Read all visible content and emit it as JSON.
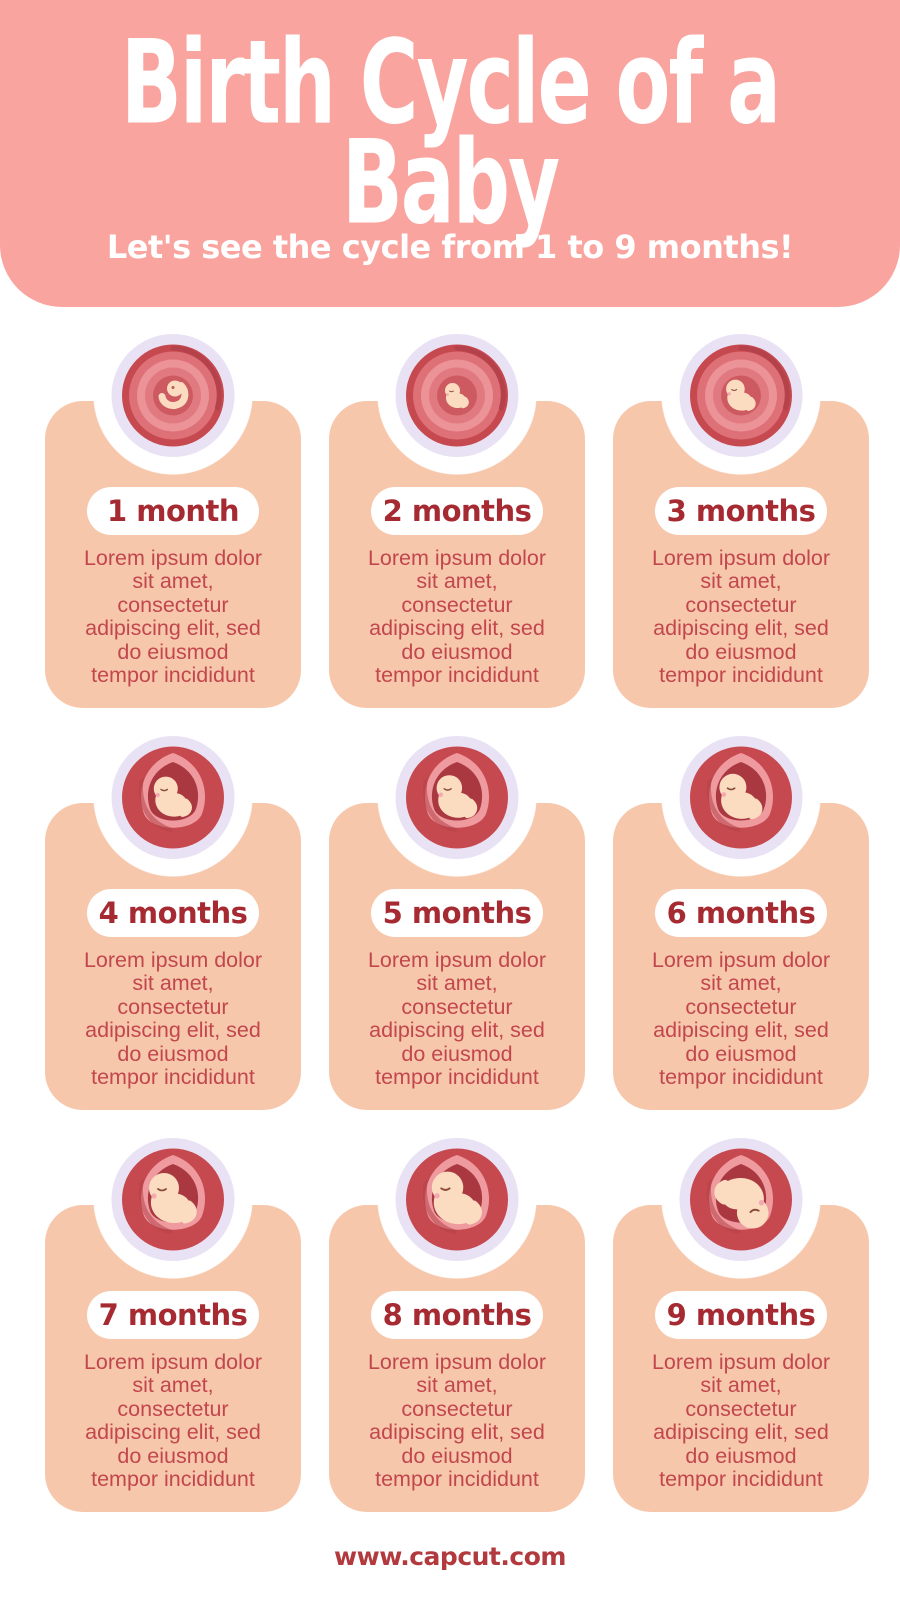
{
  "header": {
    "title": "Birth Cycle of a\nBaby",
    "subtitle": "Let's see the cycle from 1 to 9 months!"
  },
  "cards": [
    {
      "label": "1 month",
      "body": "Lorem ipsum dolor\nsit amet,\nconsectetur\nadipiscing elit, sed\ndo eiusmod\ntempor incididunt",
      "stage": "embryo",
      "scale": 1.0,
      "pose": "curled"
    },
    {
      "label": "2 months",
      "body": "Lorem ipsum dolor\nsit amet,\nconsectetur\nadipiscing elit, sed\ndo eiusmod\ntempor incididunt",
      "stage": "fetus",
      "scale": 0.5,
      "pose": "curled"
    },
    {
      "label": "3 months",
      "body": "Lorem ipsum dolor\nsit amet,\nconsectetur\nadipiscing elit, sed\ndo eiusmod\ntempor incididunt",
      "stage": "fetus",
      "scale": 0.62,
      "pose": "curled"
    },
    {
      "label": "4 months",
      "body": "Lorem ipsum dolor\nsit amet,\nconsectetur\nadipiscing elit, sed\ndo eiusmod\ntempor incididunt",
      "stage": "baby",
      "scale": 0.8,
      "pose": "curled"
    },
    {
      "label": "5 months",
      "body": "Lorem ipsum dolor\nsit amet,\nconsectetur\nadipiscing elit, sed\ndo eiusmod\ntempor incididunt",
      "stage": "baby",
      "scale": 0.85,
      "pose": "curled"
    },
    {
      "label": "6 months",
      "body": "Lorem ipsum dolor\nsit amet,\nconsectetur\nadipiscing elit, sed\ndo eiusmod\ntempor incididunt",
      "stage": "baby",
      "scale": 0.9,
      "pose": "curled"
    },
    {
      "label": "7 months",
      "body": "Lorem ipsum dolor\nsit amet,\nconsectetur\nadipiscing elit, sed\ndo eiusmod\ntempor incididunt",
      "stage": "baby",
      "scale": 1.0,
      "pose": "curled"
    },
    {
      "label": "8 months",
      "body": "Lorem ipsum dolor\nsit amet,\nconsectetur\nadipiscing elit, sed\ndo eiusmod\ntempor incididunt",
      "stage": "baby",
      "scale": 1.05,
      "pose": "curled"
    },
    {
      "label": "9 months",
      "body": "Lorem ipsum dolor\nsit amet,\nconsectetur\nadipiscing elit, sed\ndo eiusmod\ntempor incididunt",
      "stage": "baby",
      "scale": 1.05,
      "pose": "head-down"
    }
  ],
  "footer": {
    "url": "www.capcut.com"
  },
  "icon_names": [
    "womb-illustration",
    "embryo-icon",
    "fetus-icon",
    "baby-icon"
  ],
  "colors": {
    "header_bg": "#F9A49F",
    "card_bg": "#F7C7AC",
    "pill_bg": "#FFFFFF",
    "title_text": "#FFFFFF",
    "month_text": "#A52A31",
    "body_text": "#C2474D",
    "footer_text": "#B23A3E",
    "ring": "#E9E2F4",
    "womb_red": "#C6494F",
    "womb_mid": "#DE7078",
    "womb_light": "#EB9396",
    "womb_open": "#EE9A9E",
    "womb_inner": "#AA3841",
    "fetus_skin": "#FBDCC0"
  }
}
